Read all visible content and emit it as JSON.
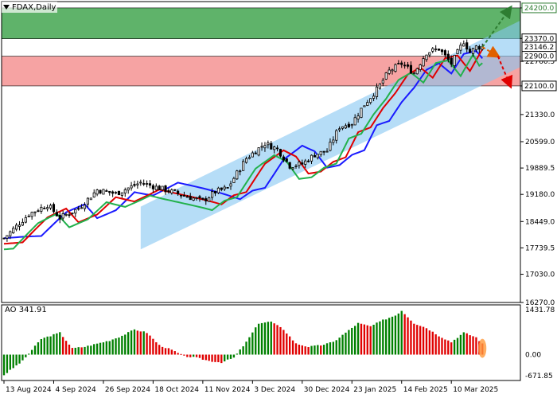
{
  "chart_data": {
    "type": "candlestick",
    "symbol_label": "FDAX,Daily",
    "price_axis": {
      "ylim": [
        16270,
        24370
      ],
      "ticks": [
        "24200.0",
        "23379.0",
        "22760.5",
        "22100.0",
        "21330.0",
        "20599.0",
        "19889.5",
        "19180.0",
        "18449.0",
        "17739.5",
        "17030.0",
        "16270.0"
      ],
      "tick_values": [
        24200,
        23379,
        22760.5,
        22100,
        21330,
        20599,
        19889.5,
        19180,
        18449,
        17739.5,
        17030,
        16270
      ],
      "labels": [
        {
          "text": "24200.0",
          "value": 24200,
          "color": "#2e7d32"
        },
        {
          "text": "23370.0",
          "value": 23370,
          "color": "#000000"
        },
        {
          "text": "23146.2",
          "value": 23146.2,
          "color": "#000000"
        },
        {
          "text": "22900.0",
          "value": 22900,
          "color": "#000000"
        },
        {
          "text": "22100.0",
          "value": 22100,
          "color": "#000000"
        }
      ]
    },
    "zones": [
      {
        "name": "resistance-zone",
        "from": 23370,
        "to": 24200,
        "color": "#5fb36a"
      },
      {
        "name": "support-zone",
        "from": 22100,
        "to": 22900,
        "color": "#f6a3a3"
      }
    ],
    "x_axis": {
      "labels": [
        "13 Aug 2024",
        "4 Sep 2024",
        "26 Sep 2024",
        "18 Oct 2024",
        "11 Nov 2024",
        "3 Dec 2024",
        "30 Dec 2024",
        "23 Jan 2025",
        "14 Feb 2025",
        "10 Mar 2025"
      ],
      "bar_index": [
        0,
        16,
        32,
        48,
        64,
        80,
        96,
        112,
        128,
        144
      ]
    },
    "bar_count": 155,
    "price_waypoints": [
      [
        0,
        18000
      ],
      [
        8,
        18650
      ],
      [
        14,
        18900
      ],
      [
        18,
        18550
      ],
      [
        24,
        18800
      ],
      [
        30,
        19300
      ],
      [
        36,
        19200
      ],
      [
        44,
        19500
      ],
      [
        52,
        19300
      ],
      [
        58,
        19150
      ],
      [
        64,
        19000
      ],
      [
        68,
        19250
      ],
      [
        72,
        19350
      ],
      [
        78,
        20150
      ],
      [
        84,
        20550
      ],
      [
        88,
        20400
      ],
      [
        92,
        19950
      ],
      [
        96,
        20000
      ],
      [
        100,
        20250
      ],
      [
        104,
        20350
      ],
      [
        108,
        21000
      ],
      [
        112,
        21100
      ],
      [
        116,
        21600
      ],
      [
        120,
        22000
      ],
      [
        124,
        22500
      ],
      [
        128,
        22700
      ],
      [
        132,
        22450
      ],
      [
        136,
        23000
      ],
      [
        140,
        23100
      ],
      [
        144,
        22700
      ],
      [
        148,
        23300
      ],
      [
        150,
        23000
      ],
      [
        152,
        23150
      ],
      [
        154,
        23146
      ]
    ],
    "ma_fast": {
      "color": "#22b14c",
      "offset": 300,
      "lag": 3
    },
    "ma_mid": {
      "color": "#e00000",
      "offset": 150,
      "lag": 6
    },
    "ma_slow": {
      "color": "#1a1aff",
      "offset": 0,
      "lag": 12
    },
    "channel": {
      "color": "#86c6f2",
      "lower": [
        [
          44,
          17700
        ],
        [
          166,
          22600
        ]
      ],
      "upper": [
        [
          44,
          18850
        ],
        [
          166,
          23850
        ]
      ]
    },
    "forecast_arrows": [
      {
        "color": "#2e7d32",
        "from": [
          154,
          23146
        ],
        "to": [
          163,
          24200
        ]
      },
      {
        "color": "#e06000",
        "from": [
          154,
          23146
        ],
        "to": [
          159,
          22900
        ]
      },
      {
        "color": "#e00000",
        "from": [
          159,
          22900
        ],
        "to": [
          163,
          22100
        ]
      }
    ],
    "ao": {
      "label": "AO 341.91",
      "ylim": [
        -671.85,
        1431.78
      ],
      "ticks": [
        "1431.78",
        "0.00",
        "-671.85"
      ],
      "tick_values": [
        1431.78,
        0,
        -671.85
      ],
      "color_up": "#008000",
      "color_down": "#e00000",
      "waypoints": [
        [
          0,
          -650
        ],
        [
          6,
          -200
        ],
        [
          12,
          500
        ],
        [
          18,
          700
        ],
        [
          22,
          200
        ],
        [
          26,
          250
        ],
        [
          30,
          350
        ],
        [
          34,
          450
        ],
        [
          38,
          600
        ],
        [
          42,
          800
        ],
        [
          46,
          700
        ],
        [
          50,
          300
        ],
        [
          54,
          150
        ],
        [
          58,
          -50
        ],
        [
          62,
          -100
        ],
        [
          66,
          -200
        ],
        [
          70,
          -250
        ],
        [
          74,
          -100
        ],
        [
          78,
          400
        ],
        [
          82,
          1000
        ],
        [
          86,
          1050
        ],
        [
          90,
          800
        ],
        [
          94,
          350
        ],
        [
          98,
          250
        ],
        [
          102,
          300
        ],
        [
          106,
          400
        ],
        [
          110,
          700
        ],
        [
          114,
          1000
        ],
        [
          118,
          900
        ],
        [
          122,
          1100
        ],
        [
          126,
          1250
        ],
        [
          128,
          1400
        ],
        [
          132,
          1000
        ],
        [
          136,
          850
        ],
        [
          140,
          600
        ],
        [
          144,
          400
        ],
        [
          148,
          700
        ],
        [
          152,
          550
        ],
        [
          154,
          341.91
        ]
      ]
    }
  }
}
